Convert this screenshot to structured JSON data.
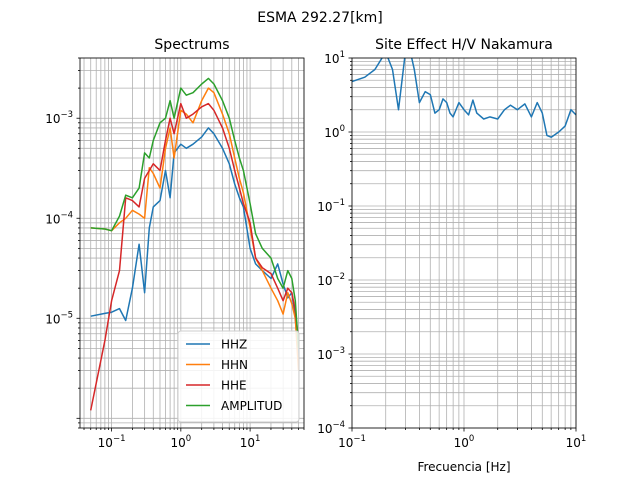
{
  "suptitle": "ESMA 292.27[km]",
  "chart_data": [
    {
      "type": "line",
      "title": "Spectrums",
      "xlabel": "",
      "ylabel": "",
      "xscale": "log",
      "yscale": "log",
      "xlim": [
        0.035,
        60
      ],
      "ylim": [
        8e-07,
        0.004
      ],
      "grid": true,
      "legend_position": "lower-right",
      "x_ticks": [
        {
          "value": 0.1,
          "base": "10",
          "exp": "−1"
        },
        {
          "value": 1,
          "base": "10",
          "exp": "0"
        },
        {
          "value": 10,
          "base": "10",
          "exp": "1"
        }
      ],
      "y_ticks": [
        {
          "value": 1e-05,
          "base": "10",
          "exp": "−5"
        },
        {
          "value": 0.0001,
          "base": "10",
          "exp": "−4"
        },
        {
          "value": 0.001,
          "base": "10",
          "exp": "−3"
        }
      ],
      "series": [
        {
          "name": "HHZ",
          "color": "#1f77b4",
          "x": [
            0.05,
            0.08,
            0.1,
            0.13,
            0.16,
            0.2,
            0.25,
            0.3,
            0.35,
            0.4,
            0.5,
            0.6,
            0.7,
            0.8,
            1.0,
            1.2,
            1.5,
            2.0,
            2.5,
            3.0,
            4.0,
            5.0,
            6.0,
            7.0,
            8.0,
            10,
            12,
            15,
            20,
            25,
            30,
            35,
            40,
            45,
            50
          ],
          "y": [
            1.05e-05,
            1.12e-05,
            1.15e-05,
            1.25e-05,
            9.5e-06,
            2e-05,
            5.5e-05,
            1.8e-05,
            8e-05,
            0.00013,
            0.00015,
            0.0003,
            0.00016,
            0.00045,
            0.00055,
            0.0005,
            0.00055,
            0.00065,
            0.0008,
            0.0007,
            0.0005,
            0.00035,
            0.00022,
            0.00016,
            0.00013,
            5e-05,
            3.5e-05,
            3e-05,
            2.5e-05,
            3.5e-05,
            2.2e-05,
            1.6e-05,
            1.8e-05,
            1e-05,
            4e-06
          ]
        },
        {
          "name": "HHN",
          "color": "#ff7f0e",
          "x": [
            0.05,
            0.08,
            0.1,
            0.13,
            0.16,
            0.2,
            0.25,
            0.3,
            0.35,
            0.4,
            0.5,
            0.6,
            0.7,
            0.8,
            1.0,
            1.2,
            1.5,
            2.0,
            2.5,
            3.0,
            4.0,
            5.0,
            6.0,
            7.0,
            8.0,
            10,
            12,
            15,
            20,
            25,
            30,
            35,
            40,
            45,
            50
          ],
          "y": [
            8e-05,
            7.8e-05,
            7.5e-05,
            9e-05,
            0.0001,
            0.00012,
            0.00011,
            0.0001,
            0.00032,
            0.00028,
            0.0002,
            0.0005,
            0.0008,
            0.0004,
            0.0012,
            0.0011,
            0.0009,
            0.0015,
            0.002,
            0.0018,
            0.0011,
            0.0007,
            0.0004,
            0.00025,
            0.00018,
            8e-05,
            4e-05,
            3e-05,
            2e-05,
            1.5e-05,
            1.1e-05,
            1.8e-05,
            1.4e-05,
            1e-05,
            3e-06
          ]
        },
        {
          "name": "HHE",
          "color": "#d62728",
          "x": [
            0.05,
            0.08,
            0.1,
            0.13,
            0.16,
            0.2,
            0.25,
            0.3,
            0.35,
            0.4,
            0.5,
            0.6,
            0.7,
            0.8,
            1.0,
            1.2,
            1.5,
            2.0,
            2.5,
            3.0,
            4.0,
            5.0,
            6.0,
            7.0,
            8.0,
            10,
            12,
            15,
            20,
            25,
            30,
            35,
            40,
            45,
            50
          ],
          "y": [
            1.2e-06,
            6e-06,
            1.5e-05,
            3e-05,
            0.00016,
            0.00015,
            0.00013,
            0.00025,
            0.0003,
            0.00035,
            0.0003,
            0.0006,
            0.001,
            0.0007,
            0.0014,
            0.001,
            0.0011,
            0.0013,
            0.0014,
            0.0012,
            0.0008,
            0.0005,
            0.0003,
            0.0002,
            0.00014,
            9e-05,
            4e-05,
            3.2e-05,
            2.8e-05,
            2e-05,
            1.5e-05,
            2e-05,
            1.8e-05,
            1.2e-05,
            6e-06
          ]
        },
        {
          "name": "AMPLITUD",
          "color": "#2ca02c",
          "x": [
            0.05,
            0.08,
            0.1,
            0.13,
            0.16,
            0.2,
            0.25,
            0.3,
            0.35,
            0.4,
            0.5,
            0.6,
            0.7,
            0.8,
            1.0,
            1.2,
            1.5,
            2.0,
            2.5,
            3.0,
            4.0,
            5.0,
            6.0,
            7.0,
            8.0,
            10,
            12,
            15,
            20,
            25,
            30,
            35,
            40,
            45,
            50
          ],
          "y": [
            8e-05,
            7.8e-05,
            7.5e-05,
            0.000105,
            0.00017,
            0.00016,
            0.0002,
            0.00045,
            0.0004,
            0.0006,
            0.0009,
            0.001,
            0.0015,
            0.001,
            0.002,
            0.0017,
            0.0018,
            0.0022,
            0.0025,
            0.0022,
            0.0015,
            0.001,
            0.0006,
            0.0004,
            0.0003,
            0.00014,
            7e-05,
            5e-05,
            4e-05,
            2.5e-05,
            2e-05,
            3e-05,
            2.5e-05,
            1.5e-05,
            5e-06
          ]
        }
      ]
    },
    {
      "type": "line",
      "title": "Site Effect H/V Nakamura",
      "xlabel": "Frecuencia [Hz]",
      "ylabel": "",
      "xscale": "log",
      "yscale": "log",
      "xlim": [
        0.1,
        10
      ],
      "ylim": [
        0.0001,
        10
      ],
      "grid": true,
      "x_ticks": [
        {
          "value": 0.1,
          "base": "10",
          "exp": "−1"
        },
        {
          "value": 1,
          "base": "10",
          "exp": "0"
        },
        {
          "value": 10,
          "base": "10",
          "exp": "1"
        }
      ],
      "y_ticks": [
        {
          "value": 0.0001,
          "base": "10",
          "exp": "−4"
        },
        {
          "value": 0.001,
          "base": "10",
          "exp": "−3"
        },
        {
          "value": 0.01,
          "base": "10",
          "exp": "−2"
        },
        {
          "value": 0.1,
          "base": "10",
          "exp": "−1"
        },
        {
          "value": 1,
          "base": "10",
          "exp": "0"
        },
        {
          "value": 10,
          "base": "10",
          "exp": "1"
        }
      ],
      "series": [
        {
          "name": "",
          "color": "#1f77b4",
          "x": [
            0.1,
            0.13,
            0.16,
            0.2,
            0.23,
            0.26,
            0.3,
            0.33,
            0.36,
            0.4,
            0.45,
            0.5,
            0.55,
            0.6,
            0.65,
            0.7,
            0.75,
            0.8,
            0.9,
            1.0,
            1.1,
            1.2,
            1.3,
            1.5,
            1.7,
            2.0,
            2.3,
            2.6,
            3.0,
            3.5,
            4.0,
            4.5,
            5.0,
            5.5,
            6.0,
            7.0,
            8.0,
            9.0,
            10.0
          ],
          "y": [
            4.8,
            5.5,
            7.0,
            12.0,
            7.0,
            2.0,
            12.0,
            12.5,
            7.0,
            2.5,
            3.5,
            3.2,
            1.8,
            2.0,
            2.8,
            2.5,
            1.8,
            1.6,
            2.5,
            2.0,
            1.7,
            2.7,
            1.8,
            1.5,
            1.6,
            1.5,
            2.0,
            2.3,
            2.0,
            2.4,
            1.6,
            2.5,
            1.8,
            0.9,
            0.85,
            1.0,
            1.2,
            2.0,
            1.7
          ]
        }
      ]
    }
  ]
}
